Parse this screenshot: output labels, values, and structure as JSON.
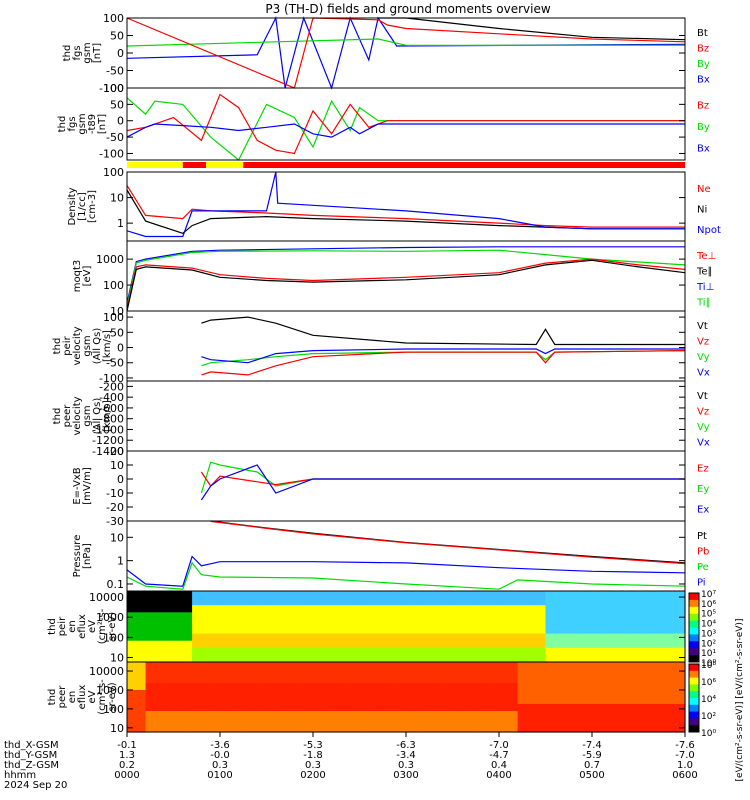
{
  "title": "P3 (TH-D) fields and ground moments overview",
  "colors": {
    "black": "#000000",
    "red": "#ff0000",
    "green": "#00dd00",
    "blue": "#0000ff",
    "yellow": "#ffff00"
  },
  "chart_data": [
    {
      "type": "line",
      "id": "fgs_gsm",
      "ylabel": [
        "thd",
        "fgs",
        "gsm",
        "[nT]"
      ],
      "ylim": [
        -100,
        100
      ],
      "yticks": [
        -100,
        -50,
        0,
        50,
        100
      ],
      "legend": [
        "Bt",
        "Bz",
        "By",
        "Bx"
      ],
      "legend_colors": [
        "black",
        "red",
        "green",
        "blue"
      ],
      "series": [
        {
          "color": "blue",
          "x": [
            0,
            14,
            16,
            17,
            19,
            22,
            24,
            26,
            27,
            29,
            60
          ],
          "y": [
            -15,
            -5,
            200,
            -100,
            150,
            -100,
            120,
            -20,
            100,
            20,
            25
          ]
        },
        {
          "color": "green",
          "x": [
            0,
            27,
            30,
            40,
            60
          ],
          "y": [
            20,
            40,
            22,
            22,
            22
          ]
        },
        {
          "color": "red",
          "x": [
            0,
            18,
            20,
            27,
            28,
            30,
            40,
            50,
            60
          ],
          "y": [
            300,
            -150,
            300,
            95,
            80,
            70,
            55,
            40,
            32
          ]
        },
        {
          "color": "black",
          "x": [
            27,
            30,
            40,
            50,
            60
          ],
          "y": [
            120,
            100,
            70,
            45,
            38
          ]
        }
      ]
    },
    {
      "type": "line",
      "id": "fgs_gsm_detrend",
      "ylabel": [
        "thd",
        "fgs",
        "gsm",
        "-t89",
        "[nT]"
      ],
      "ylim": [
        -120,
        100
      ],
      "yticks": [
        -100,
        -50,
        0,
        50,
        100
      ],
      "legend": [
        "Bz",
        "By",
        "Bx"
      ],
      "legend_colors": [
        "red",
        "green",
        "blue"
      ],
      "series": [
        {
          "color": "green",
          "x": [
            0,
            2,
            3,
            6,
            9,
            12,
            15,
            18,
            20,
            22,
            24,
            25,
            27,
            30,
            60
          ],
          "y": [
            70,
            20,
            60,
            50,
            -50,
            -120,
            50,
            10,
            -80,
            60,
            -30,
            40,
            0,
            0,
            0
          ]
        },
        {
          "color": "red",
          "x": [
            0,
            2,
            5,
            8,
            10,
            12,
            14,
            16,
            18,
            20,
            22,
            24,
            26,
            28,
            30,
            60
          ],
          "y": [
            -30,
            -20,
            10,
            -60,
            80,
            40,
            -60,
            -90,
            -100,
            30,
            -40,
            50,
            -20,
            0,
            0,
            0
          ]
        },
        {
          "color": "blue",
          "x": [
            0,
            2,
            3,
            6,
            9,
            12,
            15,
            18,
            20,
            22,
            24,
            25,
            27,
            30,
            60
          ],
          "y": [
            -50,
            -20,
            -10,
            -15,
            -20,
            -30,
            -20,
            -10,
            -40,
            -50,
            -20,
            -40,
            -10,
            -10,
            -10
          ]
        }
      ]
    },
    {
      "type": "line",
      "id": "density",
      "ylabel": [
        "Density",
        "[1/cc]",
        "[cm-3]"
      ],
      "log": true,
      "ylim": [
        0.2,
        100
      ],
      "yticks": [
        1,
        10,
        100
      ],
      "legend": [
        "Ne",
        "Ni",
        "Npot"
      ],
      "legend_colors": [
        "red",
        "black",
        "blue"
      ],
      "series": [
        {
          "color": "red",
          "x": [
            0,
            2,
            6,
            7,
            9,
            15,
            20,
            30,
            40,
            45,
            50,
            60
          ],
          "y": [
            30,
            2,
            1.5,
            3.5,
            3,
            2.5,
            2,
            1.5,
            1,
            0.8,
            0.7,
            0.7
          ]
        },
        {
          "color": "black",
          "x": [
            0,
            2,
            6,
            7,
            9,
            15,
            20,
            30,
            40,
            50,
            60
          ],
          "y": [
            20,
            1.2,
            0.4,
            0.8,
            1.5,
            1.8,
            1.5,
            1.2,
            0.8,
            0.6,
            0.6
          ]
        },
        {
          "color": "blue",
          "x": [
            0,
            2,
            6,
            7,
            9,
            15,
            16,
            16.2,
            20,
            30,
            40,
            45,
            50,
            60
          ],
          "y": [
            0.5,
            0.3,
            0.3,
            3,
            3,
            3,
            100,
            6,
            5,
            3,
            1.5,
            0.7,
            0.6,
            0.6
          ]
        }
      ]
    },
    {
      "type": "line",
      "id": "temps",
      "ylabel": [
        "moqt3",
        "[eV]"
      ],
      "log": true,
      "ylim": [
        10,
        5000
      ],
      "yticks": [
        10,
        100,
        1000
      ],
      "legend": [
        "Te⊥",
        "Te∥",
        "Ti⊥",
        "Ti∥"
      ],
      "legend_colors": [
        "red",
        "black",
        "blue",
        "green"
      ],
      "series": [
        {
          "color": "blue",
          "x": [
            0,
            1,
            2,
            7,
            10,
            20,
            30,
            40,
            50,
            60
          ],
          "y": [
            20,
            800,
            1000,
            2000,
            2200,
            2500,
            2800,
            3000,
            3000,
            3000
          ]
        },
        {
          "color": "green",
          "x": [
            0,
            1,
            2,
            7,
            10,
            20,
            30,
            40,
            45,
            50,
            60
          ],
          "y": [
            15,
            700,
            900,
            1800,
            2000,
            2100,
            2000,
            2200,
            1500,
            1000,
            600
          ]
        },
        {
          "color": "red",
          "x": [
            0,
            1,
            2,
            7,
            10,
            15,
            20,
            30,
            40,
            45,
            50,
            55,
            60
          ],
          "y": [
            12,
            500,
            600,
            450,
            250,
            180,
            150,
            200,
            300,
            700,
            1000,
            600,
            400
          ]
        },
        {
          "color": "black",
          "x": [
            0,
            1,
            2,
            7,
            10,
            15,
            20,
            30,
            40,
            45,
            50,
            55,
            60
          ],
          "y": [
            10,
            400,
            500,
            380,
            200,
            150,
            130,
            160,
            250,
            600,
            900,
            500,
            300
          ]
        }
      ]
    },
    {
      "type": "line",
      "id": "peir_velocity",
      "ylabel": [
        "thd",
        "peir",
        "velocity",
        "gsm",
        "(All Qs)",
        "[km/s]"
      ],
      "ylim": [
        -110,
        120
      ],
      "yticks": [
        -100,
        -50,
        0,
        50,
        100
      ],
      "legend": [
        "Vt",
        "Vz",
        "Vy",
        "Vx"
      ],
      "legend_colors": [
        "black",
        "red",
        "green",
        "blue"
      ],
      "series": [
        {
          "color": "black",
          "x": [
            8,
            9,
            13,
            16,
            20,
            30,
            44,
            45,
            46,
            60
          ],
          "y": [
            80,
            90,
            100,
            80,
            40,
            15,
            10,
            60,
            10,
            10
          ]
        },
        {
          "color": "green",
          "x": [
            8,
            9,
            13,
            16,
            20,
            30,
            44,
            45,
            46,
            60
          ],
          "y": [
            -60,
            -50,
            -40,
            -30,
            -20,
            -15,
            -15,
            -40,
            -15,
            -10
          ]
        },
        {
          "color": "red",
          "x": [
            8,
            9,
            13,
            16,
            20,
            30,
            44,
            45,
            46,
            60
          ],
          "y": [
            -90,
            -80,
            -90,
            -60,
            -30,
            -15,
            -15,
            -50,
            -15,
            -10
          ]
        },
        {
          "color": "blue",
          "x": [
            8,
            9,
            13,
            16,
            20,
            30,
            44,
            45,
            46,
            60
          ],
          "y": [
            -30,
            -40,
            -50,
            -20,
            -10,
            -5,
            -5,
            -20,
            -5,
            -5
          ]
        }
      ]
    },
    {
      "type": "line",
      "id": "peer_velocity",
      "ylabel": [
        "thd",
        "peer",
        "velocity",
        "gsm",
        "(All Qs)",
        "[km/s]"
      ],
      "ylim": [
        -1400,
        -100
      ],
      "yticks": [
        -1400,
        -1200,
        -1000,
        -800,
        -600,
        -400,
        -200
      ],
      "legend": [
        "Vt",
        "Vz",
        "Vy",
        "Vx"
      ],
      "legend_colors": [
        "black",
        "red",
        "green",
        "blue"
      ],
      "series": []
    },
    {
      "type": "line",
      "id": "efield",
      "ylabel": [
        "E=-VxB",
        "[mV/m]"
      ],
      "ylim": [
        -30,
        20
      ],
      "yticks": [
        -30,
        -20,
        -10,
        0,
        10,
        20
      ],
      "legend": [
        "Ez",
        "Ey",
        "Ex"
      ],
      "legend_colors": [
        "red",
        "green",
        "blue"
      ],
      "series": [
        {
          "color": "green",
          "x": [
            8,
            9,
            10,
            14,
            16,
            20,
            30,
            60
          ],
          "y": [
            -10,
            12,
            10,
            5,
            -5,
            0,
            0,
            0
          ]
        },
        {
          "color": "red",
          "x": [
            8,
            9,
            10,
            14,
            16,
            20,
            30,
            60
          ],
          "y": [
            5,
            -5,
            2,
            -2,
            -4,
            0,
            0,
            0
          ]
        },
        {
          "color": "blue",
          "x": [
            8,
            9,
            10,
            14,
            16,
            20,
            30,
            60
          ],
          "y": [
            -15,
            -5,
            0,
            10,
            -10,
            0,
            0,
            0
          ]
        }
      ]
    },
    {
      "type": "line",
      "id": "pressure",
      "ylabel": [
        "Pressure",
        "[nPa]"
      ],
      "log": true,
      "ylim": [
        0.05,
        50
      ],
      "yticks": [
        0.1,
        1.0,
        10.0
      ],
      "legend": [
        "Pt",
        "Pb",
        "Pe",
        "Pi"
      ],
      "legend_colors": [
        "black",
        "red",
        "green",
        "blue"
      ],
      "series": [
        {
          "color": "black",
          "x": [
            9,
            15,
            20,
            30,
            40,
            50,
            60
          ],
          "y": [
            50,
            25,
            15,
            6,
            3,
            1.5,
            0.8
          ]
        },
        {
          "color": "red",
          "x": [
            9,
            15,
            20,
            30,
            40,
            50,
            60
          ],
          "y": [
            48,
            24,
            14,
            5.8,
            2.9,
            1.4,
            0.75
          ]
        },
        {
          "color": "blue",
          "x": [
            0,
            2,
            6,
            7,
            8,
            10,
            20,
            30,
            40,
            50,
            60
          ],
          "y": [
            0.4,
            0.1,
            0.08,
            1.5,
            0.6,
            0.9,
            0.9,
            0.8,
            0.5,
            0.35,
            0.3
          ]
        },
        {
          "color": "green",
          "x": [
            0,
            2,
            6,
            7,
            8,
            10,
            20,
            30,
            40,
            42,
            50,
            60
          ],
          "y": [
            0.2,
            0.08,
            0.06,
            0.8,
            0.25,
            0.2,
            0.18,
            0.1,
            0.06,
            0.15,
            0.1,
            0.08
          ]
        }
      ]
    },
    {
      "type": "heatmap",
      "id": "peir_eflux",
      "ylabel": [
        "thd",
        "peir",
        "en",
        "eflux",
        "eV",
        "(cm²-s-",
        "sr-eV)"
      ],
      "log": true,
      "ylim": [
        6,
        20000
      ],
      "yticks": [
        10,
        100,
        1000,
        10000
      ]
    },
    {
      "type": "heatmap",
      "id": "peer_eflux",
      "ylabel": [
        "thd",
        "peer",
        "en",
        "eflux",
        "eV",
        "(cm²-s-",
        "sr-eV)"
      ],
      "log": true,
      "ylim": [
        6,
        30000
      ],
      "yticks": [
        10,
        100,
        1000,
        10000
      ]
    }
  ],
  "colorbar_top": {
    "ticks": [
      "10⁷",
      "10⁶",
      "10⁵",
      "10⁴",
      "10³",
      "10²",
      "10¹",
      "10⁰"
    ]
  },
  "colorbar_bottom": {
    "ticks": [
      "10⁸",
      "10⁶",
      "10⁴",
      "10²",
      "10⁰"
    ]
  },
  "colorbar_label": "[eV/(cm²-s-sr-eV)]  [eV/(cm²-s-sr-eV)]",
  "mode_bar": [
    {
      "from": 0,
      "to": 6,
      "color": "yellow"
    },
    {
      "from": 6,
      "to": 8.5,
      "color": "red"
    },
    {
      "from": 8.5,
      "to": 12.5,
      "color": "yellow"
    },
    {
      "from": 12.5,
      "to": 60,
      "color": "red"
    }
  ],
  "xaxis": {
    "row_labels": [
      "thd_X-GSM",
      "thd_Y-GSM",
      "thd_Z-GSM",
      "hhmm",
      "2024 Sep 20"
    ],
    "x_gsm": [
      "-0.1",
      "-3.6",
      "-5.3",
      "-6.3",
      "-7.0",
      "-7.4",
      "-7.6"
    ],
    "y_gsm": [
      "1.3",
      "-0.0",
      "-1.8",
      "-3.4",
      "-4.7",
      "-5.9",
      "-7.0"
    ],
    "z_gsm": [
      "0.2",
      "0.3",
      "0.3",
      "0.3",
      "0.4",
      "0.7",
      "1.0"
    ],
    "hhmm": [
      "0000",
      "0100",
      "0200",
      "0300",
      "0400",
      "0500",
      "0600"
    ]
  }
}
